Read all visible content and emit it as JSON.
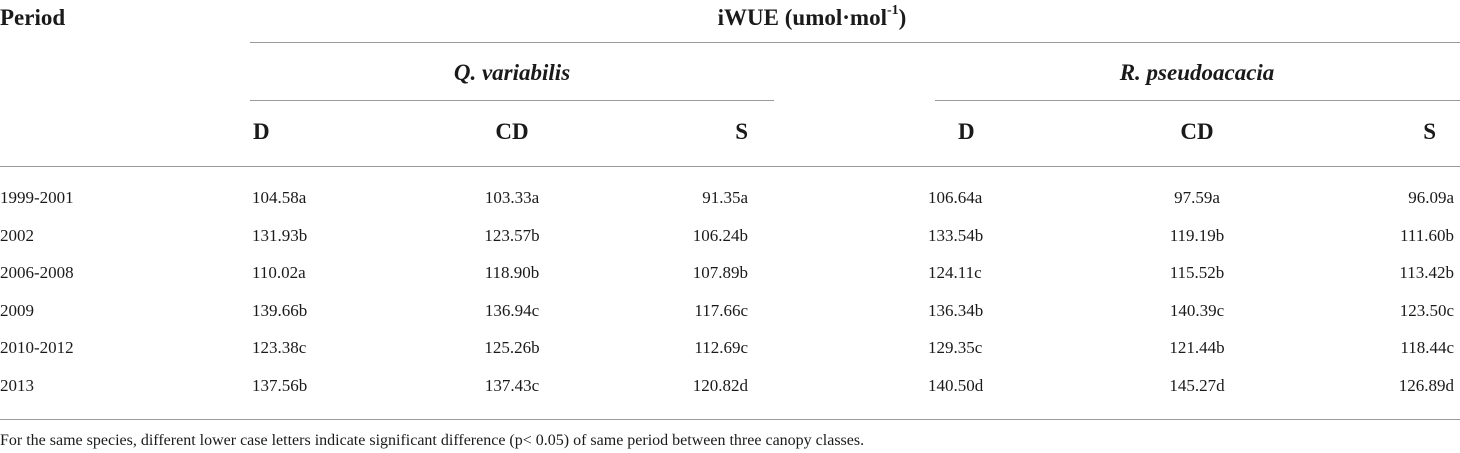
{
  "table": {
    "period_header": "Period",
    "group_title": "iWUE (umol·mol",
    "group_title_sup": "-1",
    "group_title_end": ")",
    "species": [
      "Q. variabilis",
      "R. pseudoacacia"
    ],
    "class_headers": [
      "D",
      "CD",
      "S",
      "D",
      "CD",
      "S"
    ],
    "rows": [
      {
        "period": "1999-2001",
        "values": [
          "104.58a",
          "103.33a",
          "91.35a",
          "106.64a",
          "97.59a",
          "96.09a"
        ]
      },
      {
        "period": "2002",
        "values": [
          "131.93b",
          "123.57b",
          "106.24b",
          "133.54b",
          "119.19b",
          "111.60b"
        ]
      },
      {
        "period": "2006-2008",
        "values": [
          "110.02a",
          "118.90b",
          "107.89b",
          "124.11c",
          "115.52b",
          "113.42b"
        ]
      },
      {
        "period": "2009",
        "values": [
          "139.66b",
          "136.94c",
          "117.66c",
          "136.34b",
          "140.39c",
          "123.50c"
        ]
      },
      {
        "period": "2010-2012",
        "values": [
          "123.38c",
          "125.26b",
          "112.69c",
          "129.35c",
          "121.44b",
          "118.44c"
        ]
      },
      {
        "period": "2013",
        "values": [
          "137.56b",
          "137.43c",
          "120.82d",
          "140.50d",
          "145.27d",
          "126.89d"
        ]
      }
    ],
    "footnote": "For the same species, different lower case letters indicate significant difference (p< 0.05) of same period between three canopy classes."
  }
}
